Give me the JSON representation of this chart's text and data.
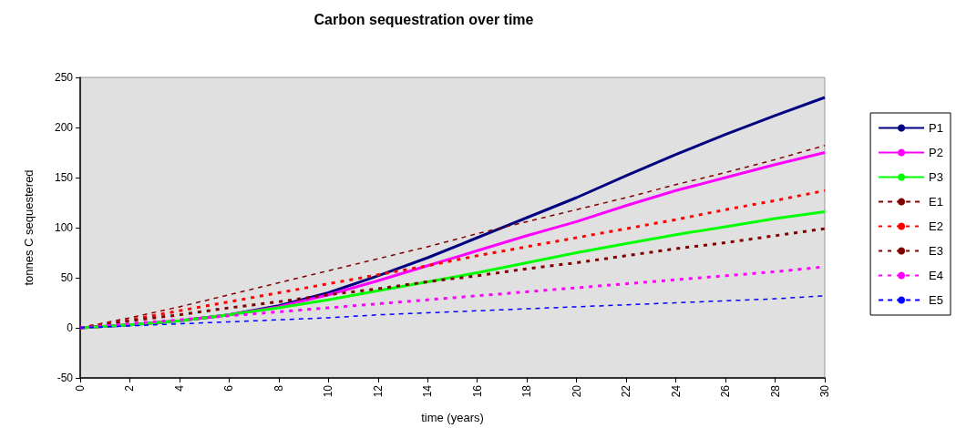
{
  "chart_data": {
    "type": "line",
    "title": "Carbon sequestration over time",
    "xlabel": "time (years)",
    "ylabel": "tonnes C sequestered",
    "x": [
      0,
      2,
      4,
      6,
      8,
      10,
      12,
      14,
      16,
      18,
      20,
      22,
      24,
      26,
      28,
      30
    ],
    "series": [
      {
        "name": "P1",
        "color": "#000080",
        "line_style": "solid",
        "values": [
          0,
          3,
          7,
          13,
          22,
          35,
          52,
          70,
          90,
          110,
          130,
          152,
          173,
          193,
          212,
          230
        ]
      },
      {
        "name": "P2",
        "color": "#ff00ff",
        "line_style": "solid",
        "values": [
          0,
          3,
          7,
          13,
          21,
          33,
          47,
          62,
          77,
          92,
          106,
          122,
          137,
          150,
          163,
          175
        ]
      },
      {
        "name": "P3",
        "color": "#00ff00",
        "line_style": "solid",
        "values": [
          0,
          3,
          7,
          13,
          20,
          28,
          37,
          46,
          55,
          65,
          75,
          84,
          93,
          101,
          109,
          116
        ]
      },
      {
        "name": "E1",
        "color": "#800000",
        "line_style": "dashed",
        "values": [
          0,
          10,
          21,
          33,
          45,
          57,
          69,
          81,
          94,
          106,
          118,
          130,
          143,
          155,
          168,
          182
        ]
      },
      {
        "name": "E2",
        "color": "#ff0000",
        "line_style": "dotted",
        "values": [
          0,
          8,
          17,
          26,
          35,
          44,
          53,
          62,
          72,
          81,
          90,
          99,
          108,
          118,
          127,
          137
        ]
      },
      {
        "name": "E3",
        "color": "#800000",
        "line_style": "dotted",
        "values": [
          0,
          7,
          13,
          20,
          26,
          33,
          39,
          46,
          52,
          59,
          65,
          72,
          79,
          85,
          92,
          99
        ]
      },
      {
        "name": "E4",
        "color": "#ff00ff",
        "line_style": "dotted",
        "values": [
          0,
          4,
          8,
          12,
          16,
          20,
          24,
          28,
          32,
          36,
          40,
          44,
          48,
          52,
          56,
          61
        ]
      },
      {
        "name": "E5",
        "color": "#0000ff",
        "line_style": "dashed",
        "values": [
          0,
          2,
          4,
          6,
          8,
          10,
          13,
          15,
          17,
          19,
          21,
          23,
          25,
          27,
          29,
          32
        ]
      }
    ],
    "xlim": [
      0,
      30
    ],
    "xticks": [
      0,
      2,
      4,
      6,
      8,
      10,
      12,
      14,
      16,
      18,
      20,
      22,
      24,
      26,
      28,
      30
    ],
    "ylim": [
      -50,
      250
    ],
    "yticks": [
      -50,
      0,
      50,
      100,
      150,
      200,
      250
    ],
    "grid": false,
    "legend": "right",
    "marker": "none"
  }
}
